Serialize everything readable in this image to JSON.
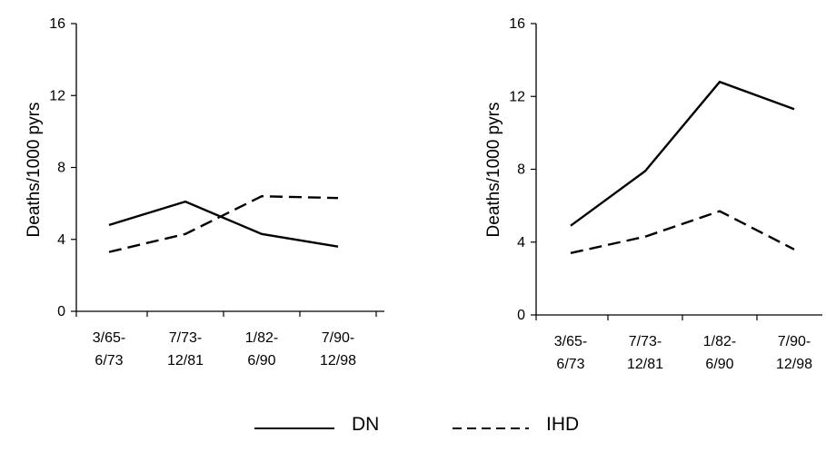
{
  "chart_data": [
    {
      "type": "line",
      "ylabel": "Deaths/1000 pyrs",
      "ylim": [
        0,
        16
      ],
      "yticks": [
        "0",
        "4",
        "8",
        "12",
        "16"
      ],
      "categories": [
        [
          "3/65-",
          "6/73"
        ],
        [
          "7/73-",
          "12/81"
        ],
        [
          "1/82-",
          "6/90"
        ],
        [
          "7/90-",
          "12/98"
        ]
      ],
      "series": [
        {
          "name": "DN",
          "style": "solid",
          "values": [
            4.8,
            6.1,
            4.3,
            3.6
          ]
        },
        {
          "name": "IHD",
          "style": "dashed",
          "values": [
            3.3,
            4.3,
            6.4,
            6.3
          ]
        }
      ]
    },
    {
      "type": "line",
      "ylabel": "Deaths/1000 pyrs",
      "ylim": [
        0,
        16
      ],
      "yticks": [
        "0",
        "4",
        "8",
        "12",
        "16"
      ],
      "categories": [
        [
          "3/65-",
          "6/73"
        ],
        [
          "7/73-",
          "12/81"
        ],
        [
          "1/82-",
          "6/90"
        ],
        [
          "7/90-",
          "12/98"
        ]
      ],
      "series": [
        {
          "name": "DN",
          "style": "solid",
          "values": [
            4.9,
            7.9,
            12.8,
            11.3
          ]
        },
        {
          "name": "IHD",
          "style": "dashed",
          "values": [
            3.4,
            4.3,
            5.7,
            3.6
          ]
        }
      ]
    }
  ],
  "legend": [
    {
      "label": "DN",
      "style": "solid"
    },
    {
      "label": "IHD",
      "style": "dashed"
    }
  ],
  "colors": {
    "line": "#000000",
    "axis": "#000000"
  }
}
